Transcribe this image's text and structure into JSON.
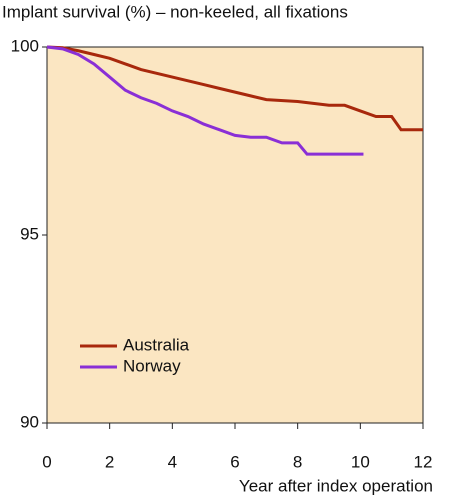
{
  "chart_data": {
    "type": "line",
    "title": "Implant survival (%) – non-keeled, all fixations",
    "x_label": "Year after index operation",
    "xlim": [
      0,
      12
    ],
    "xticks": [
      0,
      2,
      4,
      6,
      8,
      10,
      12
    ],
    "ylim": [
      90,
      100
    ],
    "yticks": [
      90,
      95,
      100
    ],
    "background": "#fbe6c2",
    "legend": "lower left",
    "series": [
      {
        "name": "Australia",
        "color": "#a8280c",
        "x": [
          0,
          0.5,
          1,
          1.5,
          2,
          2.5,
          3,
          3.5,
          4,
          4.5,
          5,
          5.5,
          6,
          6.5,
          7,
          8,
          8.5,
          9,
          9.5,
          10,
          10.5,
          11,
          11.3,
          12
        ],
        "values": [
          100,
          99.98,
          99.9,
          99.8,
          99.7,
          99.55,
          99.4,
          99.3,
          99.2,
          99.1,
          99.0,
          98.9,
          98.8,
          98.7,
          98.6,
          98.55,
          98.5,
          98.45,
          98.45,
          98.3,
          98.15,
          98.15,
          97.8,
          97.8
        ]
      },
      {
        "name": "Norway",
        "color": "#8a2fd6",
        "x": [
          0,
          0.5,
          1,
          1.5,
          2,
          2.5,
          3,
          3.5,
          4,
          4.5,
          5,
          5.5,
          6,
          6.5,
          7,
          7.5,
          8,
          8.3,
          10.1
        ],
        "values": [
          100,
          99.95,
          99.8,
          99.55,
          99.2,
          98.85,
          98.65,
          98.5,
          98.3,
          98.15,
          97.95,
          97.8,
          97.65,
          97.6,
          97.6,
          97.45,
          97.45,
          97.15,
          97.15
        ]
      }
    ]
  }
}
